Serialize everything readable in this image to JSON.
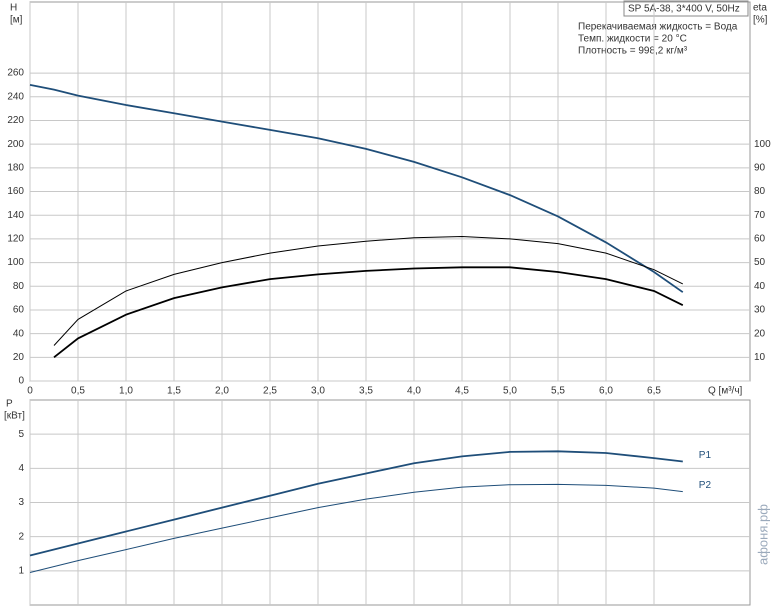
{
  "chart_data": [
    {
      "type": "line",
      "info_title": "SP 5A-38, 3*400 V, 50Hz",
      "annotations": [
        "Перекачиваемая жидкость = Вода",
        "Темп. жидкости = 20 °C",
        "Плотность = 998,2 кг/м³"
      ],
      "ylabel": [
        "H",
        "[м]"
      ],
      "y2label": [
        "eta",
        "[%]"
      ],
      "xlabel": "Q [м³/ч]",
      "xlim": [
        0,
        7.5
      ],
      "xticks": [
        0,
        {
          "value": 0.5,
          "label": "0,5"
        },
        {
          "value": 1,
          "label": "1,0"
        },
        {
          "value": 1.5,
          "label": "1,5"
        },
        {
          "value": 2,
          "label": "2,0"
        },
        {
          "value": 2.5,
          "label": "2,5"
        },
        {
          "value": 3,
          "label": "3,0"
        },
        {
          "value": 3.5,
          "label": "3,5"
        },
        {
          "value": 4,
          "label": "4,0"
        },
        {
          "value": 4.5,
          "label": "4,5"
        },
        {
          "value": 5,
          "label": "5,0"
        },
        {
          "value": 5.5,
          "label": "5,5"
        },
        {
          "value": 6,
          "label": "6,0"
        },
        {
          "value": 6.5,
          "label": "6,5"
        }
      ],
      "ylim": [
        0,
        320
      ],
      "yticks": [
        0,
        20,
        40,
        60,
        80,
        100,
        120,
        140,
        160,
        180,
        200,
        220,
        240,
        260
      ],
      "y2lim": [
        0,
        160
      ],
      "y2ticks": [
        10,
        20,
        30,
        40,
        50,
        60,
        70,
        80,
        90,
        100
      ],
      "grid": true,
      "x": [
        0,
        0.25,
        0.5,
        1,
        1.5,
        2,
        2.5,
        3,
        3.5,
        4,
        4.5,
        5,
        5.5,
        6,
        6.5,
        6.8
      ],
      "series": [
        {
          "color": "#1f4e79",
          "values": [
            250,
            246,
            241,
            233,
            226,
            219,
            212,
            205,
            196,
            185,
            172,
            157,
            139,
            117,
            92,
            75
          ]
        },
        {
          "color": "#000000",
          "axis": "y2",
          "values": [
            null,
            15,
            26,
            38,
            45,
            50,
            54,
            57,
            59,
            60.5,
            61,
            60,
            58,
            54,
            47,
            41
          ]
        },
        {
          "color": "#000000",
          "axis": "y2",
          "values": [
            null,
            10,
            18,
            28,
            35,
            39.5,
            43,
            45,
            46.5,
            47.5,
            48,
            48,
            46,
            43,
            38,
            32
          ]
        }
      ]
    },
    {
      "type": "line",
      "ylabel": [
        "P",
        "[кВт]"
      ],
      "xlim": [
        0,
        7.5
      ],
      "xticks": [
        0,
        0.5,
        1,
        1.5,
        2,
        2.5,
        3,
        3.5,
        4,
        4.5,
        5,
        5.5,
        6,
        6.5
      ],
      "ylim": [
        0,
        6
      ],
      "yticks": [
        1,
        2,
        3,
        4,
        5
      ],
      "grid": true,
      "x": [
        0,
        0.5,
        1,
        1.5,
        2,
        2.5,
        3,
        3.5,
        4,
        4.5,
        5,
        5.5,
        6,
        6.5,
        6.8
      ],
      "series": [
        {
          "name": "P1",
          "color": "#1f4e79",
          "values": [
            1.45,
            1.8,
            2.15,
            2.5,
            2.85,
            3.2,
            3.55,
            3.85,
            4.15,
            4.35,
            4.48,
            4.5,
            4.45,
            4.3,
            4.2
          ]
        },
        {
          "name": "P2",
          "color": "#1f4e79",
          "values": [
            0.95,
            1.3,
            1.62,
            1.95,
            2.25,
            2.55,
            2.85,
            3.1,
            3.3,
            3.45,
            3.52,
            3.53,
            3.5,
            3.42,
            3.32
          ]
        }
      ]
    }
  ],
  "watermark": "афоня.рф"
}
